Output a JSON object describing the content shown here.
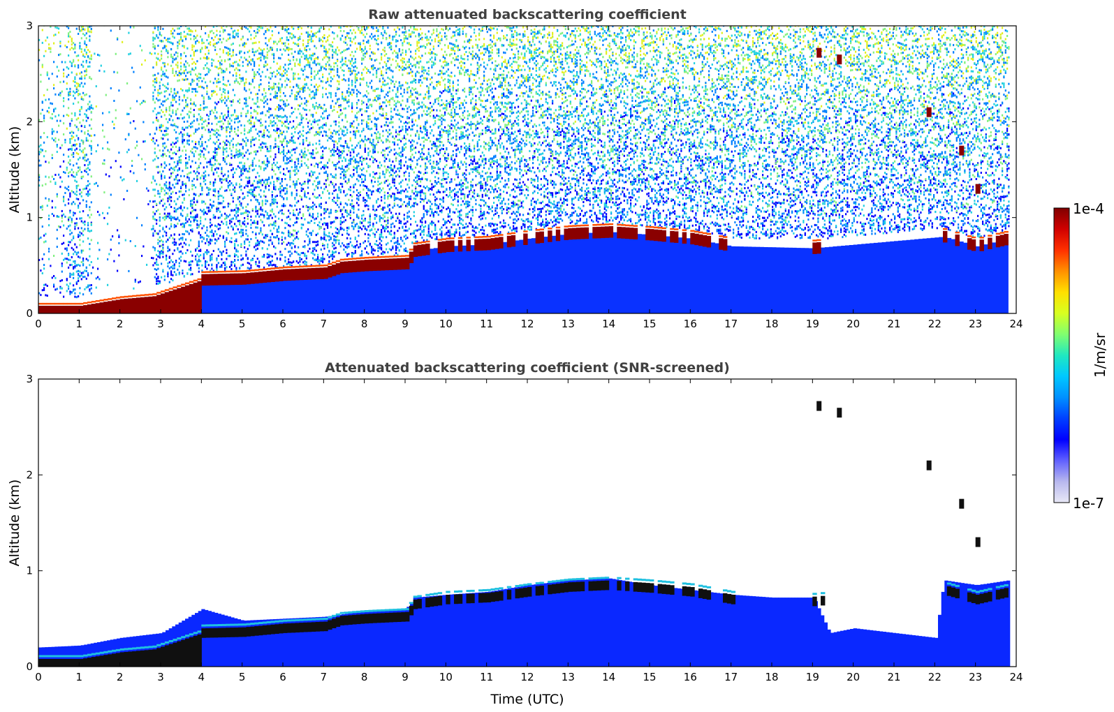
{
  "chart_data": [
    {
      "type": "heatmap",
      "title": "Raw attenuated backscattering coefficient",
      "xlabel": "",
      "ylabel": "Altitude (km)",
      "xlim": [
        0,
        24
      ],
      "ylim": [
        0,
        3
      ],
      "xticks": [
        "0",
        "1",
        "2",
        "3",
        "4",
        "5",
        "6",
        "7",
        "8",
        "9",
        "10",
        "11",
        "12",
        "13",
        "14",
        "15",
        "16",
        "17",
        "18",
        "19",
        "20",
        "21",
        "22",
        "23",
        "24"
      ],
      "yticks": [
        "0",
        "1",
        "2",
        "3"
      ],
      "layer_height_km": {
        "x": [
          0,
          1,
          2,
          2.8,
          4,
          5,
          6,
          7,
          7.4,
          8,
          9,
          9.2,
          10,
          11,
          12,
          13,
          14,
          15,
          16,
          17,
          19,
          22.2,
          23,
          23.8
        ],
        "y": [
          0.08,
          0.08,
          0.15,
          0.18,
          0.35,
          0.36,
          0.4,
          0.42,
          0.48,
          0.5,
          0.52,
          0.65,
          0.7,
          0.72,
          0.78,
          0.83,
          0.85,
          0.82,
          0.78,
          0.7,
          0.68,
          0.8,
          0.7,
          0.78
        ]
      },
      "cirrus_patches": [
        {
          "x": 19.1,
          "y": 2.72
        },
        {
          "x": 19.6,
          "y": 2.65
        },
        {
          "x": 21.8,
          "y": 2.1
        },
        {
          "x": 22.6,
          "y": 1.7
        },
        {
          "x": 23.0,
          "y": 1.3
        }
      ]
    },
    {
      "type": "heatmap",
      "title": "Attenuated backscattering coefficient (SNR-screened)",
      "xlabel": "Time (UTC)",
      "ylabel": "Altitude (km)",
      "xlim": [
        0,
        24
      ],
      "ylim": [
        0,
        3
      ],
      "xticks": [
        "0",
        "1",
        "2",
        "3",
        "4",
        "5",
        "6",
        "7",
        "8",
        "9",
        "10",
        "11",
        "12",
        "13",
        "14",
        "15",
        "16",
        "17",
        "18",
        "19",
        "20",
        "21",
        "22",
        "23",
        "24"
      ],
      "yticks": [
        "0",
        "1",
        "2",
        "3"
      ],
      "boundary_layer_top_km": {
        "x": [
          0,
          1,
          2,
          3,
          4,
          5,
          6,
          7,
          8,
          9,
          9.2,
          10,
          11,
          12,
          13,
          14,
          15,
          16,
          17,
          18,
          19,
          19.4,
          20,
          21,
          22,
          22.2,
          23,
          23.8
        ],
        "y": [
          0.2,
          0.22,
          0.3,
          0.35,
          0.6,
          0.48,
          0.5,
          0.52,
          0.58,
          0.6,
          0.72,
          0.75,
          0.78,
          0.85,
          0.9,
          0.92,
          0.85,
          0.8,
          0.75,
          0.72,
          0.72,
          0.35,
          0.4,
          0.35,
          0.3,
          0.9,
          0.85,
          0.9
        ]
      }
    }
  ],
  "colorbar": {
    "label": "1/m/sr",
    "min_label": "1e-7",
    "max_label": "1e-4",
    "colormap": [
      "#e8e8f6",
      "#b8b8ee",
      "#6060ff",
      "#0000ff",
      "#0040ff",
      "#0090ff",
      "#00c8ff",
      "#20e8c0",
      "#80ff70",
      "#d8ff20",
      "#ffe000",
      "#ff9000",
      "#ff3000",
      "#d00000",
      "#800000"
    ]
  }
}
